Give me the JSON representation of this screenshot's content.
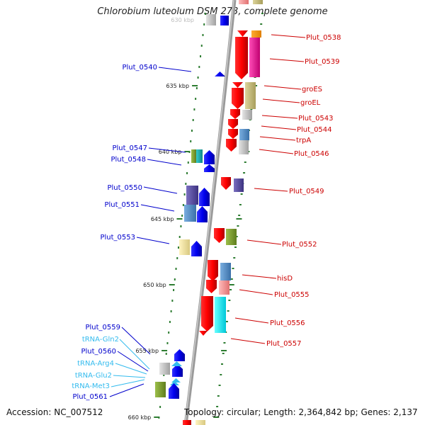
{
  "title": "Chlorobium luteolum DSM 273, complete genome",
  "footer": {
    "accession": "Accession: NC_007512",
    "topology": "Topology: circular; Length: 2,364,842 bp; Genes: 2,137"
  },
  "colors": {
    "plus_strand_label": "#cc0000",
    "minus_strand_label": "#0000cc",
    "trna_label": "#33bbee",
    "backbone": "#999999",
    "tick": "#2e7d32"
  },
  "position_ticks": [
    {
      "label": "635 kbp"
    },
    {
      "label": "640 kbp"
    },
    {
      "label": "645 kbp"
    },
    {
      "label": "650 kbp"
    },
    {
      "label": "655 kbp"
    },
    {
      "label": "660 kbp"
    }
  ],
  "partial_tick_label": "630 kbp",
  "genes_plus": [
    {
      "name": "Plut_0538"
    },
    {
      "name": "Plut_0539"
    },
    {
      "name": "groES"
    },
    {
      "name": "groEL"
    },
    {
      "name": "Plut_0543"
    },
    {
      "name": "Plut_0544"
    },
    {
      "name": "trpA"
    },
    {
      "name": "Plut_0546"
    },
    {
      "name": "Plut_0549"
    },
    {
      "name": "Plut_0552"
    },
    {
      "name": "hisD"
    },
    {
      "name": "Plut_0555"
    },
    {
      "name": "Plut_0556"
    },
    {
      "name": "Plut_0557"
    }
  ],
  "genes_minus": [
    {
      "name": "Plut_0540"
    },
    {
      "name": "Plut_0547"
    },
    {
      "name": "Plut_0548"
    },
    {
      "name": "Plut_0550"
    },
    {
      "name": "Plut_0551"
    },
    {
      "name": "Plut_0553"
    },
    {
      "name": "Plut_0559"
    },
    {
      "name": "tRNA-Gln2",
      "type": "tRNA"
    },
    {
      "name": "Plut_0560"
    },
    {
      "name": "tRNA-Arg4",
      "type": "tRNA"
    },
    {
      "name": "tRNA-Glu2",
      "type": "tRNA"
    },
    {
      "name": "tRNA-Met3",
      "type": "tRNA"
    },
    {
      "name": "Plut_0561"
    }
  ]
}
